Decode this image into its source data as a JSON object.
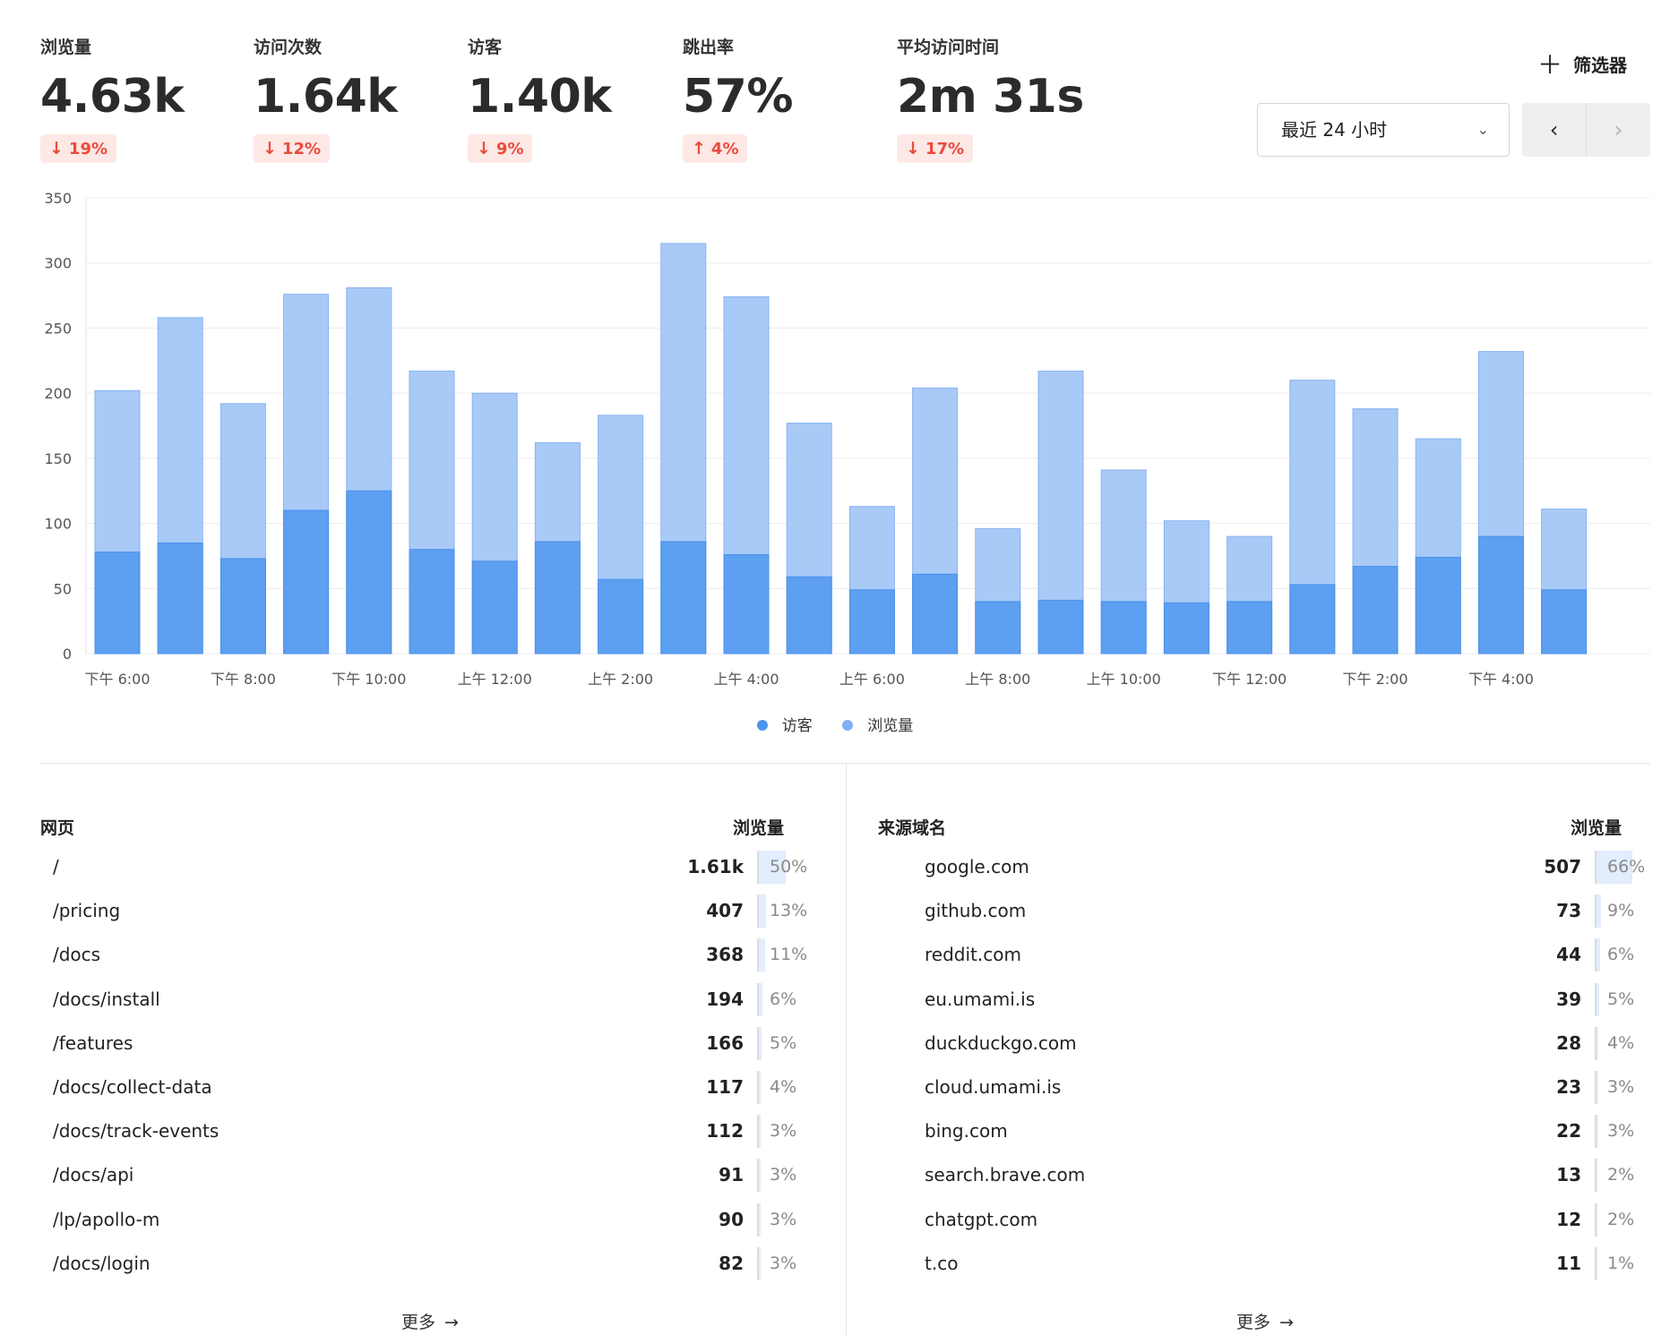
{
  "metrics": [
    {
      "label": "浏览量",
      "value": "4.63k",
      "change": "19%",
      "direction": "down"
    },
    {
      "label": "访问次数",
      "value": "1.64k",
      "change": "12%",
      "direction": "down"
    },
    {
      "label": "访客",
      "value": "1.40k",
      "change": "9%",
      "direction": "down"
    },
    {
      "label": "跳出率",
      "value": "57%",
      "change": "4%",
      "direction": "up"
    },
    {
      "label": "平均访问时间",
      "value": "2m 31s",
      "change": "17%",
      "direction": "down"
    }
  ],
  "controls": {
    "filter_label": "筛选器",
    "date_range": "最近 24 小时"
  },
  "chart_data": {
    "type": "bar",
    "stacked": "overlay",
    "ylim": [
      0,
      350
    ],
    "yticks": [
      0,
      50,
      100,
      150,
      200,
      250,
      300,
      350
    ],
    "x_tick_labels": [
      "下午 6:00",
      "下午 8:00",
      "下午 10:00",
      "上午 12:00",
      "上午 2:00",
      "上午 4:00",
      "上午 6:00",
      "上午 8:00",
      "上午 10:00",
      "下午 12:00",
      "下午 2:00",
      "下午 4:00"
    ],
    "series": [
      {
        "name": "访客",
        "color": "#5b9ff0",
        "values": [
          78,
          85,
          73,
          110,
          125,
          80,
          71,
          86,
          57,
          86,
          76,
          59,
          49,
          61,
          40,
          41,
          40,
          39,
          40,
          53,
          67,
          74,
          90,
          49
        ]
      },
      {
        "name": "浏览量",
        "color": "#a6c8f7",
        "values": [
          202,
          258,
          192,
          276,
          281,
          217,
          200,
          162,
          183,
          315,
          274,
          177,
          113,
          204,
          96,
          217,
          141,
          102,
          90,
          210,
          188,
          165,
          232,
          111
        ]
      }
    ],
    "grid": true,
    "legend_position": "bottom"
  },
  "legend": [
    {
      "label": "访客",
      "color": "#5b9ff0"
    },
    {
      "label": "浏览量",
      "color": "#7fb0f4"
    }
  ],
  "pages": {
    "title": "网页",
    "metric": "浏览量",
    "rows": [
      {
        "label": "/",
        "count": "1.61k",
        "pct": "50%",
        "pct_value": 50
      },
      {
        "label": "/pricing",
        "count": "407",
        "pct": "13%",
        "pct_value": 13
      },
      {
        "label": "/docs",
        "count": "368",
        "pct": "11%",
        "pct_value": 11
      },
      {
        "label": "/docs/install",
        "count": "194",
        "pct": "6%",
        "pct_value": 6
      },
      {
        "label": "/features",
        "count": "166",
        "pct": "5%",
        "pct_value": 5
      },
      {
        "label": "/docs/collect-data",
        "count": "117",
        "pct": "4%",
        "pct_value": 4
      },
      {
        "label": "/docs/track-events",
        "count": "112",
        "pct": "3%",
        "pct_value": 3
      },
      {
        "label": "/docs/api",
        "count": "91",
        "pct": "3%",
        "pct_value": 3
      },
      {
        "label": "/lp/apollo-m",
        "count": "90",
        "pct": "3%",
        "pct_value": 3
      },
      {
        "label": "/docs/login",
        "count": "82",
        "pct": "3%",
        "pct_value": 3
      }
    ],
    "more_label": "更多"
  },
  "referrers": {
    "title": "来源域名",
    "metric": "浏览量",
    "rows": [
      {
        "label": "google.com",
        "count": "507",
        "pct": "66%",
        "pct_value": 66
      },
      {
        "label": "github.com",
        "count": "73",
        "pct": "9%",
        "pct_value": 9
      },
      {
        "label": "reddit.com",
        "count": "44",
        "pct": "6%",
        "pct_value": 6
      },
      {
        "label": "eu.umami.is",
        "count": "39",
        "pct": "5%",
        "pct_value": 5
      },
      {
        "label": "duckduckgo.com",
        "count": "28",
        "pct": "4%",
        "pct_value": 4
      },
      {
        "label": "cloud.umami.is",
        "count": "23",
        "pct": "3%",
        "pct_value": 3
      },
      {
        "label": "bing.com",
        "count": "22",
        "pct": "3%",
        "pct_value": 3
      },
      {
        "label": "search.brave.com",
        "count": "13",
        "pct": "2%",
        "pct_value": 2
      },
      {
        "label": "chatgpt.com",
        "count": "12",
        "pct": "2%",
        "pct_value": 2
      },
      {
        "label": "t.co",
        "count": "11",
        "pct": "1%",
        "pct_value": 1
      }
    ],
    "more_label": "更多"
  }
}
